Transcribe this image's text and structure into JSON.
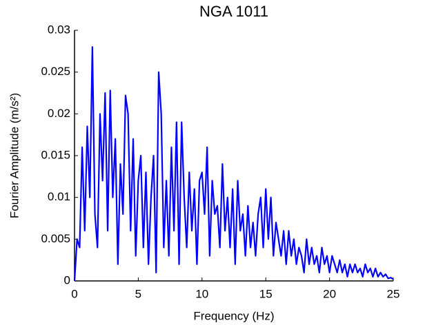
{
  "chart_data": {
    "type": "line",
    "title": "NGA 1011",
    "x_label": "Frequency (Hz)",
    "y_label": "Fourier Amplitude (m/s²)",
    "xlim": [
      0,
      25
    ],
    "ylim": [
      0,
      0.03
    ],
    "xticks": [
      0,
      5,
      10,
      15,
      20,
      25
    ],
    "yticks": [
      0,
      0.005,
      0.01,
      0.015,
      0.02,
      0.025,
      0.03
    ],
    "grid": false,
    "series": [
      {
        "color": "#0000ff",
        "x": [
          0,
          0.2,
          0.4,
          0.6,
          0.8,
          1,
          1.2,
          1.4,
          1.6,
          1.8,
          2,
          2.2,
          2.4,
          2.6,
          2.8,
          3,
          3.2,
          3.4,
          3.6,
          3.8,
          4,
          4.2,
          4.4,
          4.6,
          4.8,
          5,
          5.2,
          5.4,
          5.6,
          5.8,
          6,
          6.2,
          6.4,
          6.6,
          6.8,
          7,
          7.2,
          7.4,
          7.6,
          7.8,
          8,
          8.2,
          8.4,
          8.6,
          8.8,
          9,
          9.2,
          9.4,
          9.6,
          9.8,
          10,
          10.2,
          10.4,
          10.6,
          10.8,
          11,
          11.2,
          11.4,
          11.6,
          11.8,
          12,
          12.2,
          12.4,
          12.6,
          12.8,
          13,
          13.2,
          13.4,
          13.6,
          13.8,
          14,
          14.2,
          14.4,
          14.6,
          14.8,
          15,
          15.2,
          15.4,
          15.6,
          15.8,
          16,
          16.2,
          16.4,
          16.6,
          16.8,
          17,
          17.2,
          17.4,
          17.6,
          17.8,
          18,
          18.2,
          18.4,
          18.6,
          18.8,
          19,
          19.2,
          19.4,
          19.6,
          19.8,
          20,
          20.2,
          20.4,
          20.6,
          20.8,
          21,
          21.2,
          21.4,
          21.6,
          21.8,
          22,
          22.2,
          22.4,
          22.6,
          22.8,
          23,
          23.2,
          23.4,
          23.6,
          23.8,
          24,
          24.2,
          24.4,
          24.6,
          24.8,
          25
        ],
        "values": [
          0,
          0.005,
          0.004,
          0.016,
          0.006,
          0.0185,
          0.01,
          0.028,
          0.008,
          0.004,
          0.02,
          0.012,
          0.0225,
          0.006,
          0.0228,
          0.01,
          0.017,
          0.002,
          0.014,
          0.008,
          0.0222,
          0.02,
          0.006,
          0.017,
          0.003,
          0.012,
          0.015,
          0.004,
          0.013,
          0.002,
          0.01,
          0.015,
          0.001,
          0.025,
          0.02,
          0.004,
          0.012,
          0.003,
          0.016,
          0.006,
          0.019,
          0.002,
          0.019,
          0.01,
          0.004,
          0.013,
          0.006,
          0.011,
          0.002,
          0.012,
          0.013,
          0.008,
          0.016,
          0.003,
          0.012,
          0.008,
          0.009,
          0.004,
          0.014,
          0.006,
          0.01,
          0.004,
          0.011,
          0.002,
          0.012,
          0.006,
          0.008,
          0.003,
          0.009,
          0.004,
          0.007,
          0.003,
          0.008,
          0.01,
          0.004,
          0.011,
          0.005,
          0.01,
          0.003,
          0.007,
          0.005,
          0.003,
          0.006,
          0.002,
          0.006,
          0.003,
          0.005,
          0.002,
          0.004,
          0.003,
          0.001,
          0.005,
          0.002,
          0.004,
          0.002,
          0.003,
          0.001,
          0.004,
          0.002,
          0.003,
          0.001,
          0.003,
          0.002,
          0.001,
          0.0025,
          0.001,
          0.002,
          0.0005,
          0.002,
          0.001,
          0.002,
          0.001,
          0.0015,
          0.0005,
          0.002,
          0.001,
          0.0015,
          0.0005,
          0.0015,
          0.0005,
          0.001,
          0.0005,
          0.0008,
          0.0003,
          0.0004,
          0.0002
        ]
      }
    ]
  }
}
